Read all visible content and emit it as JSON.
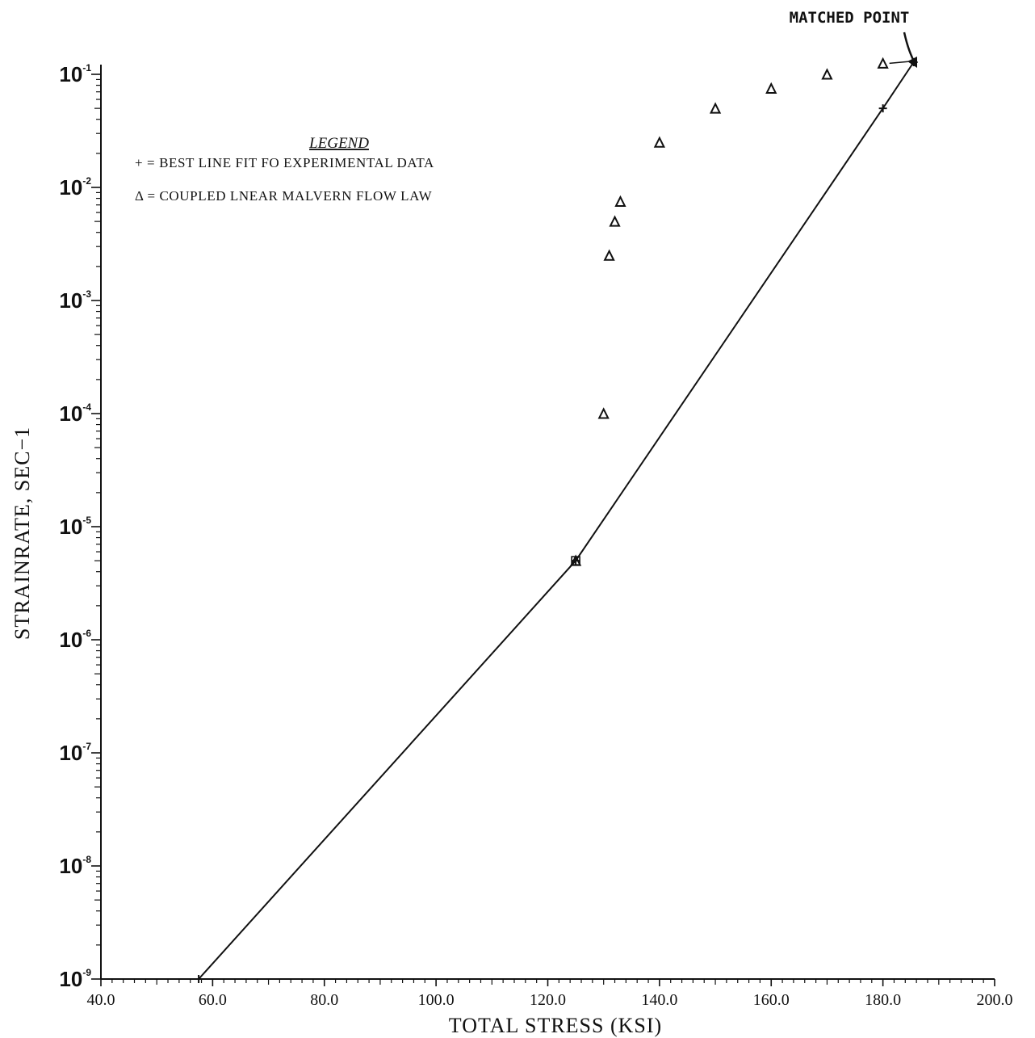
{
  "chart_data": {
    "type": "line",
    "title": "",
    "xlabel": "TOTAL STRESS (KSI)",
    "ylabel": "STRAINRATE, SEC−1",
    "xlim": [
      40.0,
      200.0
    ],
    "ylim": [
      1e-09,
      0.1
    ],
    "yscale": "log",
    "grid": false,
    "x_ticks": [
      40.0,
      60.0,
      80.0,
      100.0,
      120.0,
      140.0,
      160.0,
      180.0,
      200.0
    ],
    "x_tick_labels": [
      "40.0",
      "60.0",
      "80.0",
      "100.0",
      "120.0",
      "140.0",
      "160.0",
      "180.0",
      "200.0"
    ],
    "y_ticks": [
      {
        "value": 1e-09,
        "base": "10",
        "exp": "-9"
      },
      {
        "value": 1e-08,
        "base": "10",
        "exp": "-8"
      },
      {
        "value": 1e-07,
        "base": "10",
        "exp": "-7"
      },
      {
        "value": 1e-06,
        "base": "10",
        "exp": "-6"
      },
      {
        "value": 1e-05,
        "base": "10",
        "exp": "-5"
      },
      {
        "value": 0.0001,
        "base": "10",
        "exp": "-4"
      },
      {
        "value": 0.001,
        "base": "10",
        "exp": "-3"
      },
      {
        "value": 0.01,
        "base": "10",
        "exp": "-2"
      },
      {
        "value": 0.1,
        "base": "10",
        "exp": "-1"
      }
    ],
    "legend": {
      "title": "LEGEND",
      "placement": "top-left",
      "entries": [
        {
          "symbol": "+",
          "label": "+ = BEST LINE FIT FO EXPERIMENTAL DATA"
        },
        {
          "symbol": "triangle",
          "label": "Δ = COUPLED LNEAR MALVERN FLOW LAW"
        }
      ]
    },
    "annotations": [
      {
        "text": "MATCHED POINT",
        "x": 185.5,
        "y": 0.128
      }
    ],
    "series": [
      {
        "name": "BEST LINE FIT FO EXPERIMENTAL DATA",
        "marker": "+",
        "line": true,
        "x": [
          57.5,
          125.0,
          180.0,
          185.5
        ],
        "y": [
          1e-09,
          5e-06,
          0.05,
          0.128
        ]
      },
      {
        "name": "COUPLED LNEAR MALVERN FLOW LAW",
        "marker": "triangle",
        "line": false,
        "x": [
          125.0,
          130.0,
          131.0,
          132.0,
          133.0,
          140.0,
          150.0,
          160.0,
          170.0,
          180.0
        ],
        "y": [
          5e-06,
          0.0001,
          0.0025,
          0.005,
          0.0075,
          0.025,
          0.05,
          0.075,
          0.1,
          0.125
        ]
      }
    ]
  }
}
